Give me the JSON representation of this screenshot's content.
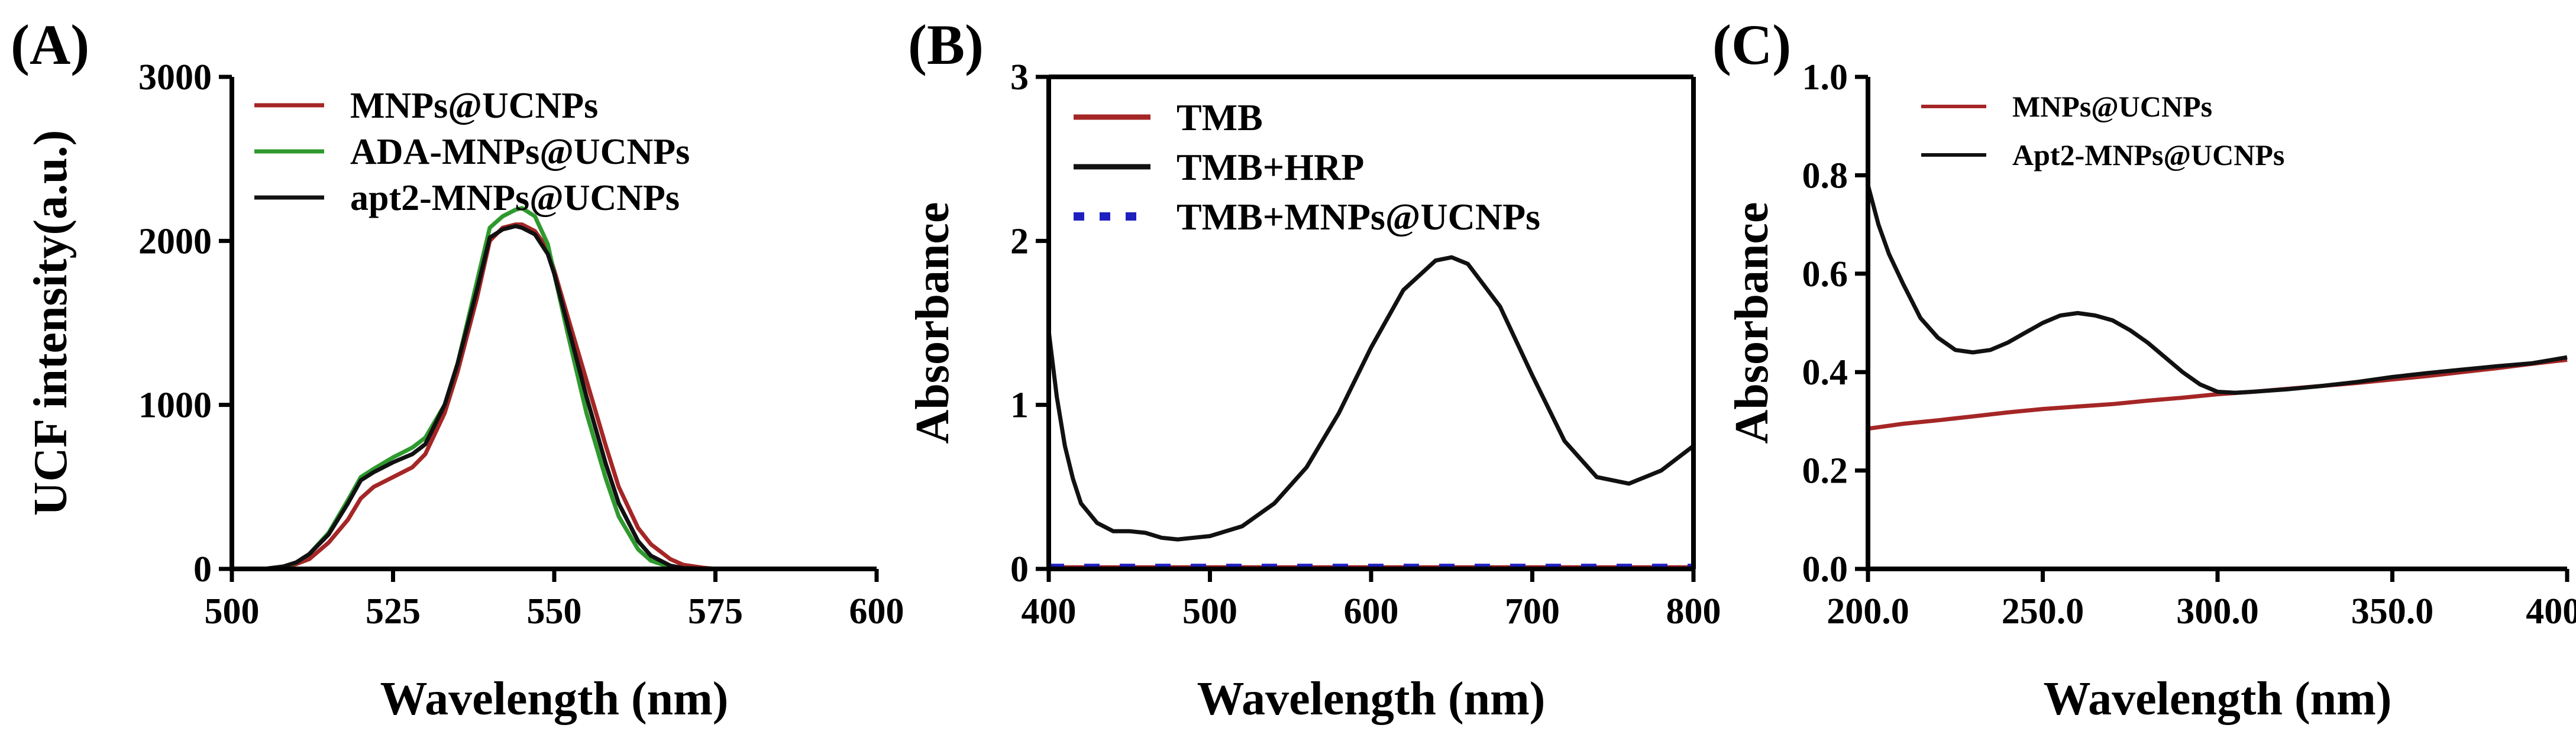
{
  "colors": {
    "red": "#a52626",
    "green": "#2e9a2e",
    "black": "#111111",
    "blue": "#1f1fbf"
  },
  "chart_data": [
    {
      "panel_label": "(A)",
      "type": "line",
      "xlabel": "Wavelength (nm)",
      "ylabel": "UCF intensity(a.u.)",
      "xlim": [
        500,
        600
      ],
      "ylim": [
        0,
        3000
      ],
      "xticks": [
        500,
        525,
        550,
        575,
        600
      ],
      "yticks": [
        0,
        1000,
        2000,
        3000
      ],
      "legend_position": "top-left",
      "series": [
        {
          "name": "MNPs@UCNPs",
          "color": "#a52626",
          "style": "solid",
          "x": [
            500,
            505,
            508,
            510,
            512,
            515,
            518,
            520,
            522,
            525,
            528,
            530,
            533,
            535,
            538,
            540,
            542,
            544,
            545,
            547,
            549,
            550,
            552,
            555,
            558,
            560,
            563,
            565,
            568,
            570,
            573,
            575,
            580,
            600
          ],
          "y": [
            0,
            0,
            10,
            30,
            60,
            160,
            300,
            430,
            500,
            560,
            620,
            700,
            950,
            1200,
            1650,
            2000,
            2080,
            2100,
            2100,
            2060,
            1950,
            1820,
            1550,
            1150,
            750,
            500,
            250,
            150,
            60,
            25,
            8,
            0,
            0,
            0
          ]
        },
        {
          "name": "ADA-MNPs@UCNPs",
          "color": "#2e9a2e",
          "style": "solid",
          "x": [
            500,
            505,
            508,
            510,
            512,
            515,
            518,
            520,
            522,
            525,
            528,
            530,
            533,
            535,
            538,
            540,
            542,
            544,
            545,
            547,
            549,
            550,
            552,
            555,
            558,
            560,
            563,
            565,
            568,
            570,
            575,
            600
          ],
          "y": [
            0,
            0,
            10,
            40,
            90,
            220,
            420,
            560,
            610,
            680,
            740,
            800,
            1000,
            1250,
            1750,
            2080,
            2150,
            2190,
            2200,
            2150,
            1980,
            1800,
            1450,
            950,
            550,
            320,
            120,
            50,
            10,
            0,
            0,
            0
          ]
        },
        {
          "name": "apt2-MNPs@UCNPs",
          "color": "#111111",
          "style": "solid",
          "x": [
            500,
            505,
            508,
            510,
            512,
            515,
            518,
            520,
            522,
            525,
            528,
            530,
            533,
            535,
            538,
            540,
            542,
            544,
            545,
            547,
            549,
            550,
            552,
            555,
            558,
            560,
            563,
            565,
            568,
            570,
            575,
            600
          ],
          "y": [
            0,
            0,
            15,
            40,
            90,
            210,
            400,
            540,
            590,
            650,
            700,
            760,
            1000,
            1250,
            1700,
            2020,
            2070,
            2090,
            2080,
            2040,
            1920,
            1800,
            1500,
            1050,
            640,
            400,
            170,
            80,
            20,
            5,
            0,
            0
          ]
        }
      ]
    },
    {
      "panel_label": "(B)",
      "type": "line",
      "xlabel": "Wavelength (nm)",
      "ylabel": "Absorbance",
      "xlim": [
        400,
        800
      ],
      "ylim": [
        0,
        3
      ],
      "xticks": [
        400,
        500,
        600,
        700,
        800
      ],
      "yticks": [
        0,
        1,
        2,
        3
      ],
      "legend_position": "top-left",
      "series": [
        {
          "name": "TMB",
          "color": "#a52626",
          "style": "solid",
          "x": [
            400,
            800
          ],
          "y": [
            0.01,
            0.01
          ]
        },
        {
          "name": "TMB+HRP",
          "color": "#111111",
          "style": "solid",
          "x": [
            400,
            405,
            410,
            415,
            420,
            430,
            440,
            450,
            460,
            470,
            480,
            500,
            520,
            540,
            560,
            580,
            600,
            620,
            640,
            650,
            660,
            680,
            700,
            720,
            740,
            760,
            780,
            800
          ],
          "y": [
            1.45,
            1.05,
            0.75,
            0.55,
            0.4,
            0.28,
            0.23,
            0.23,
            0.22,
            0.19,
            0.18,
            0.2,
            0.26,
            0.4,
            0.62,
            0.95,
            1.35,
            1.7,
            1.88,
            1.9,
            1.86,
            1.6,
            1.18,
            0.78,
            0.56,
            0.52,
            0.6,
            0.75
          ]
        },
        {
          "name": "TMB+MNPs@UCNPs",
          "color": "#1f1fbf",
          "style": "dashed",
          "x": [
            400,
            800
          ],
          "y": [
            0.01,
            0.01
          ]
        }
      ]
    },
    {
      "panel_label": "(C)",
      "type": "line",
      "xlabel": "Wavelength (nm)",
      "ylabel": "Absorbance",
      "xlim": [
        200,
        400
      ],
      "ylim": [
        0.0,
        1.0
      ],
      "xticks": [
        200,
        250,
        300,
        350,
        400
      ],
      "yticks": [
        0.0,
        0.2,
        0.4,
        0.6,
        0.8,
        1.0
      ],
      "legend_position": "top-left",
      "series": [
        {
          "name": "MNPs@UCNPs",
          "color": "#a52626",
          "style": "solid",
          "x": [
            200,
            210,
            220,
            230,
            240,
            250,
            260,
            270,
            280,
            290,
            300,
            310,
            320,
            330,
            340,
            350,
            360,
            370,
            380,
            390,
            400
          ],
          "y": [
            0.285,
            0.295,
            0.302,
            0.31,
            0.318,
            0.325,
            0.33,
            0.335,
            0.342,
            0.348,
            0.355,
            0.36,
            0.366,
            0.372,
            0.378,
            0.385,
            0.392,
            0.4,
            0.408,
            0.417,
            0.425
          ]
        },
        {
          "name": "Apt2-MNPs@UCNPs",
          "color": "#111111",
          "style": "solid",
          "x": [
            200,
            203,
            206,
            210,
            215,
            220,
            225,
            230,
            235,
            240,
            245,
            250,
            255,
            260,
            265,
            270,
            275,
            280,
            285,
            290,
            295,
            300,
            305,
            310,
            320,
            330,
            340,
            350,
            360,
            370,
            380,
            390,
            400
          ],
          "y": [
            0.78,
            0.7,
            0.64,
            0.58,
            0.51,
            0.47,
            0.445,
            0.44,
            0.445,
            0.46,
            0.48,
            0.5,
            0.515,
            0.52,
            0.515,
            0.505,
            0.485,
            0.46,
            0.43,
            0.4,
            0.375,
            0.36,
            0.358,
            0.36,
            0.365,
            0.372,
            0.38,
            0.39,
            0.398,
            0.405,
            0.412,
            0.418,
            0.43
          ]
        }
      ]
    }
  ]
}
